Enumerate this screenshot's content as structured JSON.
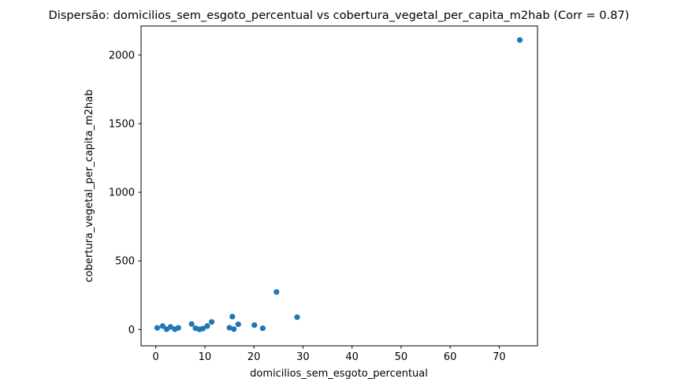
{
  "chart_data": {
    "type": "scatter",
    "title": "Dispersão: domicilios_sem_esgoto_percentual vs cobertura_vegetal_per_capita_m2hab (Corr = 0.87)",
    "xlabel": "domicilios_sem_esgoto_percentual",
    "ylabel": "cobertura_vegetal_per_capita_m2hab",
    "correlation_shown_in_title": 0.87,
    "xlim": [
      -3.0,
      77.8
    ],
    "ylim": [
      -119,
      2212
    ],
    "xticks": [
      0,
      10,
      20,
      30,
      40,
      50,
      60,
      70
    ],
    "yticks": [
      0,
      500,
      1000,
      1500,
      2000
    ],
    "grid": false,
    "legend_position": "none",
    "point_color": "#1f77b4",
    "background_color": "#ffffff",
    "spine_color": "#000000",
    "points": [
      [
        0.3,
        12
      ],
      [
        1.4,
        25
      ],
      [
        2.2,
        2
      ],
      [
        3.0,
        19
      ],
      [
        3.9,
        2
      ],
      [
        4.6,
        12
      ],
      [
        7.3,
        40
      ],
      [
        8.1,
        9
      ],
      [
        8.9,
        1
      ],
      [
        9.6,
        7
      ],
      [
        10.5,
        25
      ],
      [
        11.4,
        55
      ],
      [
        15.0,
        13
      ],
      [
        15.6,
        94
      ],
      [
        15.9,
        3
      ],
      [
        16.8,
        38
      ],
      [
        20.1,
        32
      ],
      [
        21.8,
        9
      ],
      [
        24.6,
        273
      ],
      [
        28.8,
        90
      ],
      [
        74.2,
        2110
      ]
    ]
  }
}
